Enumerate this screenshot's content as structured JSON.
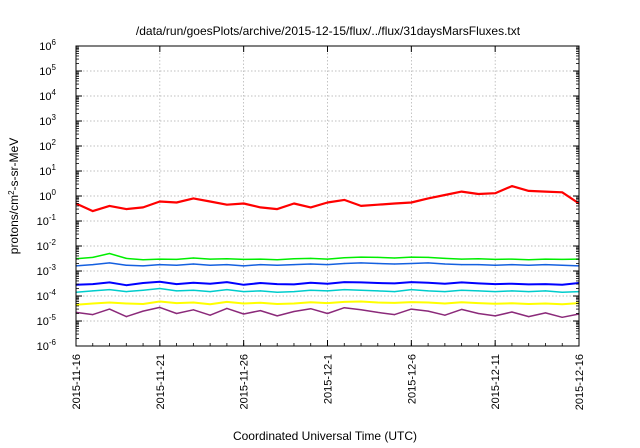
{
  "chart_data": {
    "type": "line",
    "title": "/data/run/goesPlots/archive/2015-12-15/flux/../flux/31daysMarsFluxes.txt",
    "xlabel": "Coordinated Universal Time (UTC)",
    "ylabel": {
      "base": "protons/cm",
      "sup": "2",
      "rest": "-s-sr-MeV"
    },
    "y_scale": "log",
    "ylim_exp": [
      -6,
      6
    ],
    "xlim": [
      "2015-11-16",
      "2015-12-16"
    ],
    "y_ticks": [
      {
        "base": "10",
        "exp": "-6"
      },
      {
        "base": "10",
        "exp": "-5"
      },
      {
        "base": "10",
        "exp": "-4"
      },
      {
        "base": "10",
        "exp": "-3"
      },
      {
        "base": "10",
        "exp": "-2"
      },
      {
        "base": "10",
        "exp": "-1"
      },
      {
        "base": "10",
        "exp": "0"
      },
      {
        "base": "10",
        "exp": "1"
      },
      {
        "base": "10",
        "exp": "2"
      },
      {
        "base": "10",
        "exp": "3"
      },
      {
        "base": "10",
        "exp": "4"
      },
      {
        "base": "10",
        "exp": "5"
      },
      {
        "base": "10",
        "exp": "6"
      }
    ],
    "x_ticks": [
      "2015-11-16",
      "2015-11-21",
      "2015-11-26",
      "2015-12-1",
      "2015-12-6",
      "2015-12-11",
      "2015-12-16"
    ],
    "grid": true,
    "series": [
      {
        "color": "#ff0000",
        "width": 2.2,
        "x": [
          "2015-11-16",
          "2015-11-17",
          "2015-11-18",
          "2015-11-19",
          "2015-11-20",
          "2015-11-21",
          "2015-11-22",
          "2015-11-23",
          "2015-11-24",
          "2015-11-25",
          "2015-11-26",
          "2015-11-27",
          "2015-11-28",
          "2015-11-29",
          "2015-11-30",
          "2015-12-1",
          "2015-12-2",
          "2015-12-3",
          "2015-12-4",
          "2015-12-5",
          "2015-12-6",
          "2015-12-7",
          "2015-12-8",
          "2015-12-9",
          "2015-12-10",
          "2015-12-11",
          "2015-12-12",
          "2015-12-13",
          "2015-12-14",
          "2015-12-15",
          "2015-12-16"
        ],
        "y": [
          0.5,
          0.25,
          0.4,
          0.3,
          0.35,
          0.6,
          0.55,
          0.8,
          0.6,
          0.45,
          0.5,
          0.35,
          0.3,
          0.5,
          0.35,
          0.55,
          0.7,
          0.4,
          0.45,
          0.5,
          0.55,
          0.8,
          1.1,
          1.5,
          1.2,
          1.3,
          2.5,
          1.6,
          1.5,
          1.4,
          0.5
        ]
      },
      {
        "color": "#00ee00",
        "width": 1.5,
        "x": [
          "2015-11-16",
          "2015-11-17",
          "2015-11-18",
          "2015-11-19",
          "2015-11-20",
          "2015-11-21",
          "2015-11-22",
          "2015-11-23",
          "2015-11-24",
          "2015-11-25",
          "2015-11-26",
          "2015-11-27",
          "2015-11-28",
          "2015-11-29",
          "2015-11-30",
          "2015-12-1",
          "2015-12-2",
          "2015-12-3",
          "2015-12-4",
          "2015-12-5",
          "2015-12-6",
          "2015-12-7",
          "2015-12-8",
          "2015-12-9",
          "2015-12-10",
          "2015-12-11",
          "2015-12-12",
          "2015-12-13",
          "2015-12-14",
          "2015-12-15",
          "2015-12-16"
        ],
        "y": [
          0.0031,
          0.0035,
          0.005,
          0.0032,
          0.0028,
          0.003,
          0.0029,
          0.0033,
          0.003,
          0.0031,
          0.0029,
          0.003,
          0.0028,
          0.0031,
          0.0032,
          0.003,
          0.0034,
          0.0036,
          0.0035,
          0.0033,
          0.0036,
          0.0035,
          0.0032,
          0.003,
          0.0031,
          0.0029,
          0.003,
          0.0028,
          0.003,
          0.0029,
          0.003
        ]
      },
      {
        "color": "#1560e0",
        "width": 1.5,
        "x": [
          "2015-11-16",
          "2015-11-17",
          "2015-11-18",
          "2015-11-19",
          "2015-11-20",
          "2015-11-21",
          "2015-11-22",
          "2015-11-23",
          "2015-11-24",
          "2015-11-25",
          "2015-11-26",
          "2015-11-27",
          "2015-11-28",
          "2015-11-29",
          "2015-11-30",
          "2015-12-1",
          "2015-12-2",
          "2015-12-3",
          "2015-12-4",
          "2015-12-5",
          "2015-12-6",
          "2015-12-7",
          "2015-12-8",
          "2015-12-9",
          "2015-12-10",
          "2015-12-11",
          "2015-12-12",
          "2015-12-13",
          "2015-12-14",
          "2015-12-15",
          "2015-12-16"
        ],
        "y": [
          0.0016,
          0.0018,
          0.0021,
          0.0017,
          0.0016,
          0.0018,
          0.0017,
          0.0019,
          0.0017,
          0.0018,
          0.0016,
          0.0018,
          0.0017,
          0.0018,
          0.0019,
          0.0018,
          0.002,
          0.0021,
          0.002,
          0.0019,
          0.002,
          0.0021,
          0.0019,
          0.0018,
          0.0018,
          0.0017,
          0.0018,
          0.0017,
          0.0018,
          0.0017,
          0.0016
        ]
      },
      {
        "color": "#0000ff",
        "width": 2.0,
        "x": [
          "2015-11-16",
          "2015-11-17",
          "2015-11-18",
          "2015-11-19",
          "2015-11-20",
          "2015-11-21",
          "2015-11-22",
          "2015-11-23",
          "2015-11-24",
          "2015-11-25",
          "2015-11-26",
          "2015-11-27",
          "2015-11-28",
          "2015-11-29",
          "2015-11-30",
          "2015-12-1",
          "2015-12-2",
          "2015-12-3",
          "2015-12-4",
          "2015-12-5",
          "2015-12-6",
          "2015-12-7",
          "2015-12-8",
          "2015-12-9",
          "2015-12-10",
          "2015-12-11",
          "2015-12-12",
          "2015-12-13",
          "2015-12-14",
          "2015-12-15",
          "2015-12-16"
        ],
        "y": [
          0.00028,
          0.0003,
          0.00035,
          0.00027,
          0.00033,
          0.00037,
          0.0003,
          0.00034,
          0.00031,
          0.00036,
          0.00028,
          0.00033,
          0.0003,
          0.00029,
          0.00034,
          0.00031,
          0.00036,
          0.00035,
          0.00033,
          0.00032,
          0.00036,
          0.00034,
          0.00031,
          0.00035,
          0.00032,
          0.0003,
          0.00031,
          0.00029,
          0.0003,
          0.00028,
          0.00033
        ]
      },
      {
        "color": "#00cccc",
        "width": 1.5,
        "x": [
          "2015-11-16",
          "2015-11-17",
          "2015-11-18",
          "2015-11-19",
          "2015-11-20",
          "2015-11-21",
          "2015-11-22",
          "2015-11-23",
          "2015-11-24",
          "2015-11-25",
          "2015-11-26",
          "2015-11-27",
          "2015-11-28",
          "2015-11-29",
          "2015-11-30",
          "2015-12-1",
          "2015-12-2",
          "2015-12-3",
          "2015-12-4",
          "2015-12-5",
          "2015-12-6",
          "2015-12-7",
          "2015-12-8",
          "2015-12-9",
          "2015-12-10",
          "2015-12-11",
          "2015-12-12",
          "2015-12-13",
          "2015-12-14",
          "2015-12-15",
          "2015-12-16"
        ],
        "y": [
          0.00014,
          0.00016,
          0.00018,
          0.00015,
          0.00017,
          0.0002,
          0.00016,
          0.00017,
          0.00015,
          0.00018,
          0.00015,
          0.00016,
          0.00014,
          0.00015,
          0.00017,
          0.00016,
          0.00018,
          0.00017,
          0.00016,
          0.00015,
          0.00018,
          0.00016,
          0.00015,
          0.00017,
          0.00016,
          0.00015,
          0.00016,
          0.00015,
          0.00016,
          0.00014,
          0.00015
        ]
      },
      {
        "color": "#ffff00",
        "width": 2.0,
        "x": [
          "2015-11-16",
          "2015-11-17",
          "2015-11-18",
          "2015-11-19",
          "2015-11-20",
          "2015-11-21",
          "2015-11-22",
          "2015-11-23",
          "2015-11-24",
          "2015-11-25",
          "2015-11-26",
          "2015-11-27",
          "2015-11-28",
          "2015-11-29",
          "2015-11-30",
          "2015-12-1",
          "2015-12-2",
          "2015-12-3",
          "2015-12-4",
          "2015-12-5",
          "2015-12-6",
          "2015-12-7",
          "2015-12-8",
          "2015-12-9",
          "2015-12-10",
          "2015-12-11",
          "2015-12-12",
          "2015-12-13",
          "2015-12-14",
          "2015-12-15",
          "2015-12-16"
        ],
        "y": [
          4.5e-05,
          5e-05,
          5.5e-05,
          5e-05,
          4.8e-05,
          6e-05,
          5.2e-05,
          5.5e-05,
          4.7e-05,
          5.8e-05,
          5e-05,
          5.4e-05,
          4.8e-05,
          5e-05,
          5.6e-05,
          5.2e-05,
          5.8e-05,
          6e-05,
          5.5e-05,
          5.3e-05,
          5.7e-05,
          5.5e-05,
          5e-05,
          5.6e-05,
          5.2e-05,
          4.9e-05,
          5.1e-05,
          4.8e-05,
          5e-05,
          4.7e-05,
          5.2e-05
        ]
      },
      {
        "color": "#8b2a7a",
        "width": 1.5,
        "x": [
          "2015-11-16",
          "2015-11-17",
          "2015-11-18",
          "2015-11-19",
          "2015-11-20",
          "2015-11-21",
          "2015-11-22",
          "2015-11-23",
          "2015-11-24",
          "2015-11-25",
          "2015-11-26",
          "2015-11-27",
          "2015-11-28",
          "2015-11-29",
          "2015-11-30",
          "2015-12-1",
          "2015-12-2",
          "2015-12-3",
          "2015-12-4",
          "2015-12-5",
          "2015-12-6",
          "2015-12-7",
          "2015-12-8",
          "2015-12-9",
          "2015-12-10",
          "2015-12-11",
          "2015-12-12",
          "2015-12-13",
          "2015-12-14",
          "2015-12-15",
          "2015-12-16"
        ],
        "y": [
          2.2e-05,
          1.8e-05,
          3e-05,
          1.5e-05,
          2.5e-05,
          3.5e-05,
          2e-05,
          2.8e-05,
          1.7e-05,
          3.2e-05,
          1.9e-05,
          2.6e-05,
          1.6e-05,
          2.4e-05,
          3.1e-05,
          2e-05,
          3.4e-05,
          2.8e-05,
          2.2e-05,
          1.8e-05,
          3e-05,
          2.5e-05,
          1.7e-05,
          2.9e-05,
          2e-05,
          1.6e-05,
          2.3e-05,
          1.5e-05,
          2.1e-05,
          1.4e-05,
          1.9e-05
        ]
      }
    ]
  }
}
